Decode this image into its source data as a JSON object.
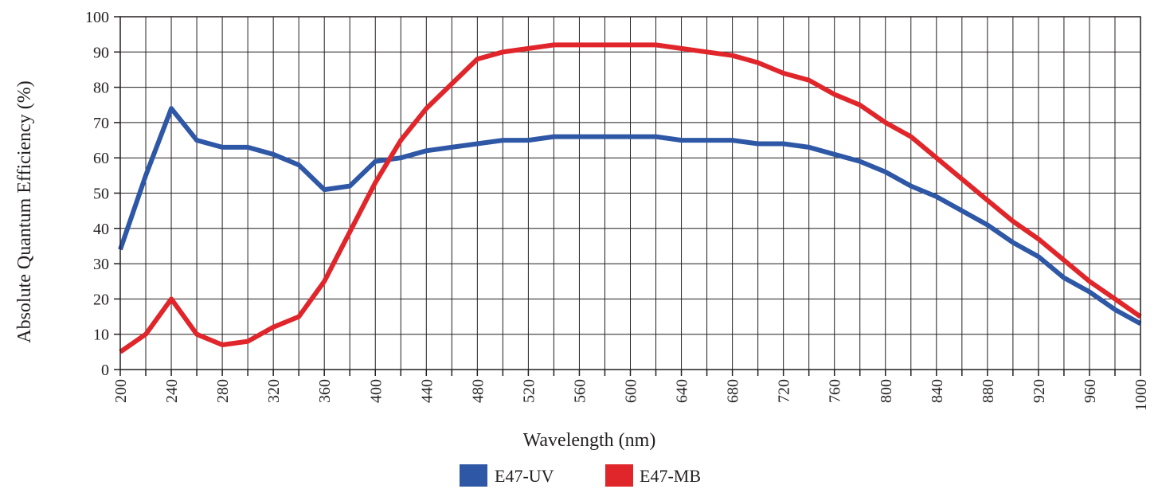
{
  "chart_data": {
    "type": "line",
    "xlabel": "Wavelength (nm)",
    "ylabel": "Absolute Quantum Efficiency (%)",
    "xlim": [
      200,
      1000
    ],
    "ylim": [
      0,
      100
    ],
    "x_ticks": [
      200,
      240,
      280,
      320,
      360,
      400,
      440,
      480,
      520,
      560,
      600,
      640,
      680,
      720,
      760,
      800,
      840,
      880,
      920,
      960,
      1000
    ],
    "y_ticks": [
      0,
      10,
      20,
      30,
      40,
      50,
      60,
      70,
      80,
      90,
      100
    ],
    "grid": true,
    "legend_position": "bottom-center",
    "x": [
      200,
      220,
      240,
      260,
      280,
      300,
      320,
      340,
      360,
      380,
      400,
      420,
      440,
      460,
      480,
      500,
      520,
      540,
      560,
      580,
      600,
      620,
      640,
      660,
      680,
      700,
      720,
      740,
      760,
      780,
      800,
      820,
      840,
      860,
      880,
      900,
      920,
      940,
      960,
      980,
      1000
    ],
    "series": [
      {
        "name": "E47-UV",
        "color": "#2e57a6",
        "values": [
          34,
          55,
          74,
          65,
          63,
          63,
          61,
          58,
          51,
          52,
          59,
          60,
          62,
          63,
          64,
          65,
          65,
          66,
          66,
          66,
          66,
          66,
          65,
          65,
          65,
          64,
          64,
          63,
          61,
          59,
          56,
          52,
          49,
          45,
          41,
          36,
          32,
          26,
          22,
          17,
          13
        ]
      },
      {
        "name": "E47-MB",
        "color": "#e0262a",
        "values": [
          5,
          10,
          20,
          10,
          7,
          8,
          12,
          15,
          25,
          39,
          53,
          65,
          74,
          81,
          88,
          90,
          91,
          92,
          92,
          92,
          92,
          92,
          91,
          90,
          89,
          87,
          84,
          82,
          78,
          75,
          70,
          66,
          60,
          54,
          48,
          42,
          37,
          31,
          25,
          20,
          15
        ]
      }
    ]
  }
}
